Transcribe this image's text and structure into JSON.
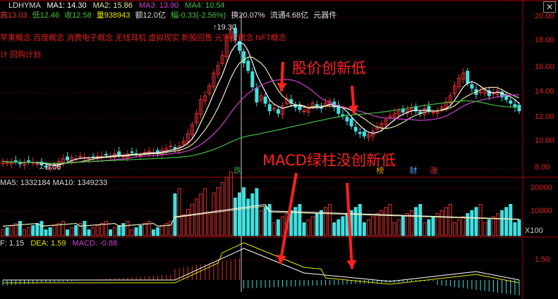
{
  "header": {
    "symbol": "LDHYMA",
    "ma1": "MA1: 14.30",
    "ma2": "MA2: 15.86",
    "ma3": "MA3: 13.90",
    "ma4": "MA4: 10.54",
    "stats": {
      "high": "高13.03",
      "low": "低12.46",
      "close": "收12.58",
      "volume": "量938943",
      "amount": "额12.0亿",
      "change": "幅-0.33(-2.56%)",
      "turnover": "换20.07%",
      "float": "流通4.68亿",
      "sector": "元器件"
    }
  },
  "concepts": "苹果概念 百度概念 消费电子概念 无线耳机 虚拟现实 新股回售 元宇宙概念 NFT概念",
  "plan": "计 回购计划",
  "price_axis": [
    "20.00",
    "18.00",
    "16.00",
    "14.00",
    "12.00",
    "10.00",
    "8.00"
  ],
  "markers": {
    "high_price": "19.30",
    "low_price": "8.06"
  },
  "badges": [
    {
      "text": "跌",
      "color": "#2ea043"
    },
    {
      "text": "榜",
      "color": "#e0a000"
    },
    {
      "text": "财",
      "color": "#4aa8ff"
    },
    {
      "text": "涨",
      "color": "#e03030"
    }
  ],
  "volume_header": "MA5: 1332184  MA10: 1349233",
  "volume_axis": [
    "20000",
    "10000"
  ],
  "volume_unit": "X100",
  "macd_header": {
    "dif": "F: 1.15",
    "dea": "DEA: 1.59",
    "macd": "MACD: -0.88"
  },
  "macd_axis": [
    "1.50"
  ],
  "annotations": {
    "price": "股价创新低",
    "macd": "MACD绿柱没创新低"
  },
  "colors": {
    "up": "#e03030",
    "down": "#40e0e0",
    "ma1": "#ffffff",
    "ma2": "#e6e6a0",
    "ma3": "#d040d0",
    "ma4": "#40c040",
    "annotation": "#ff2020"
  }
}
